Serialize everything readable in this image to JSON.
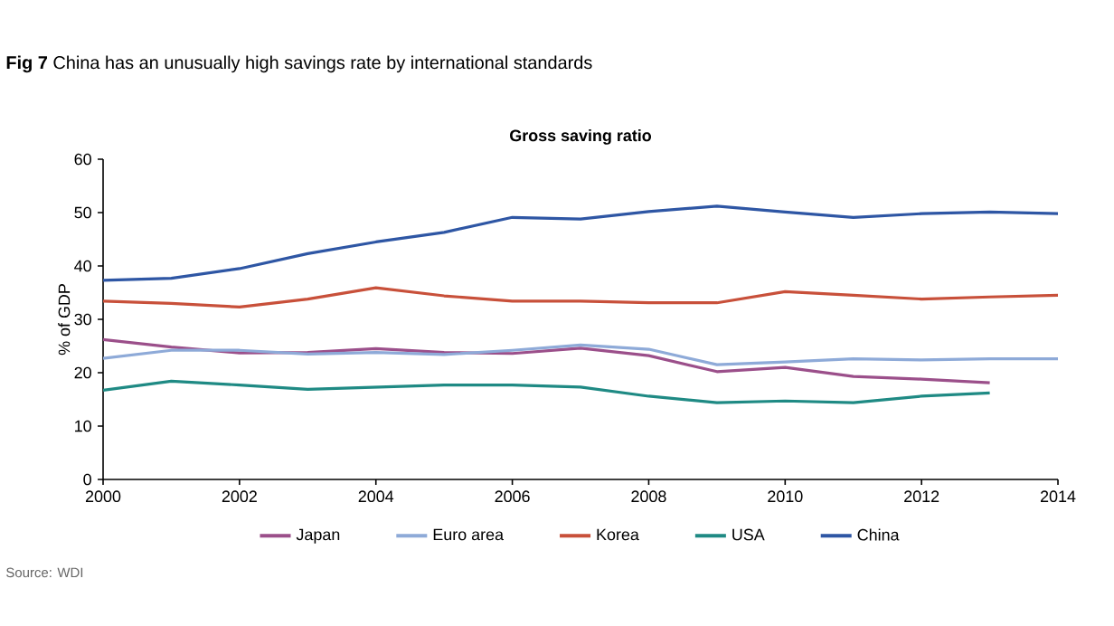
{
  "chart_data": {
    "type": "line",
    "title": "**Fig 7** China has an unusually high savings rate by international standards",
    "subtitle": "Gross saving ratio",
    "ylabel": "% of GDP",
    "x": [
      2000,
      2001,
      2002,
      2003,
      2004,
      2005,
      2006,
      2007,
      2008,
      2009,
      2010,
      2011,
      2012,
      2013,
      2014
    ],
    "xlim": [
      2000,
      2014
    ],
    "xticks": [
      2000,
      2002,
      2004,
      2006,
      2008,
      2010,
      2012,
      2014
    ],
    "ylim": [
      0,
      60
    ],
    "yticks": [
      0,
      10,
      20,
      30,
      40,
      50,
      60
    ],
    "legend": "bottom",
    "grid": false,
    "marker": "none",
    "line_style": "solid",
    "annotations": [
      "Source: WDI"
    ],
    "series": [
      {
        "name": "Japan",
        "color": "#9b4f8a",
        "values": [
          26.2,
          24.8,
          23.7,
          23.8,
          24.5,
          23.8,
          23.6,
          24.6,
          23.2,
          20.2,
          21.0,
          19.3,
          18.8,
          18.1,
          null
        ]
      },
      {
        "name": "Euro area",
        "color": "#8eaad8",
        "values": [
          22.7,
          24.2,
          24.2,
          23.5,
          23.8,
          23.4,
          24.2,
          25.2,
          24.4,
          21.5,
          22.0,
          22.6,
          22.4,
          22.6,
          22.6
        ]
      },
      {
        "name": "Korea",
        "color": "#c8503a",
        "values": [
          33.4,
          33.0,
          32.3,
          33.8,
          35.9,
          34.4,
          33.4,
          33.4,
          33.1,
          33.1,
          35.2,
          34.5,
          33.8,
          34.2,
          34.5
        ]
      },
      {
        "name": "USA",
        "color": "#1f8a84",
        "values": [
          16.7,
          18.4,
          17.7,
          16.9,
          17.3,
          17.7,
          17.7,
          17.3,
          15.6,
          14.4,
          14.7,
          14.4,
          15.6,
          16.2,
          null
        ]
      },
      {
        "name": "China",
        "color": "#2e56a4",
        "values": [
          37.3,
          37.7,
          39.5,
          42.3,
          44.5,
          46.3,
          49.1,
          48.8,
          50.2,
          51.2,
          50.1,
          49.1,
          49.8,
          50.1,
          49.8
        ]
      }
    ]
  }
}
